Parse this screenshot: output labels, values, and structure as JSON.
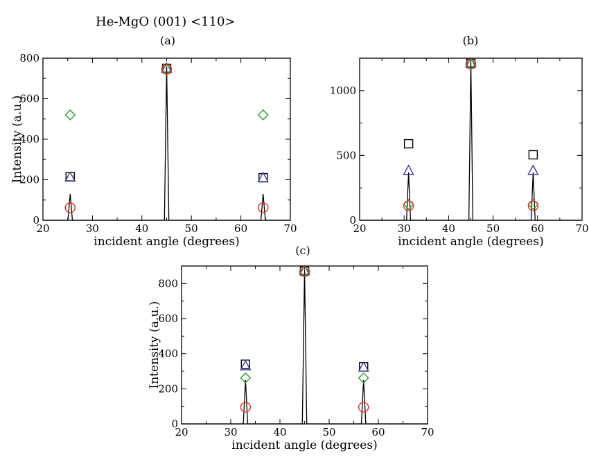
{
  "figure_title": "He-MgO (001) <110>",
  "colors": {
    "square": "#000000",
    "triangle": "#3a3a9a",
    "diamond": "#2e9a2e",
    "circle": "#e0301e",
    "curve": "#000000"
  },
  "chart_data": [
    {
      "type": "line",
      "panel_label": "(a)",
      "xlabel": "incident angle (degrees)",
      "ylabel": "Intensity (a.u.)",
      "xlim": [
        20,
        70
      ],
      "ylim": [
        0,
        800
      ],
      "xticks": [
        "20",
        "30",
        "40",
        "50",
        "60",
        "70"
      ],
      "yticks": [
        "0",
        "200",
        "400",
        "600",
        "800"
      ],
      "peaks": [
        {
          "x": 25.5,
          "y": 130
        },
        {
          "x": 45,
          "y": 760
        },
        {
          "x": 64.5,
          "y": 130
        }
      ],
      "markers": [
        {
          "shape": "square",
          "x": 25.5,
          "y": 215
        },
        {
          "shape": "triangle",
          "x": 25.5,
          "y": 210
        },
        {
          "shape": "diamond",
          "x": 25.5,
          "y": 520
        },
        {
          "shape": "circle",
          "x": 25.5,
          "y": 62
        },
        {
          "shape": "square",
          "x": 45,
          "y": 750
        },
        {
          "shape": "triangle",
          "x": 45,
          "y": 748
        },
        {
          "shape": "diamond",
          "x": 45,
          "y": 745
        },
        {
          "shape": "circle",
          "x": 45,
          "y": 745
        },
        {
          "shape": "square",
          "x": 64.5,
          "y": 210
        },
        {
          "shape": "triangle",
          "x": 64.5,
          "y": 208
        },
        {
          "shape": "diamond",
          "x": 64.5,
          "y": 520
        },
        {
          "shape": "circle",
          "x": 64.5,
          "y": 62
        }
      ]
    },
    {
      "type": "line",
      "panel_label": "(b)",
      "xlabel": "incident angle (degrees)",
      "ylabel": "",
      "xlim": [
        20,
        70
      ],
      "ylim": [
        0,
        1250
      ],
      "xticks": [
        "20",
        "30",
        "40",
        "50",
        "60",
        "70"
      ],
      "yticks": [
        "0",
        "500",
        "1000"
      ],
      "peaks": [
        {
          "x": 31,
          "y": 370
        },
        {
          "x": 45,
          "y": 1230
        },
        {
          "x": 59,
          "y": 370
        }
      ],
      "markers": [
        {
          "shape": "square",
          "x": 31,
          "y": 590
        },
        {
          "shape": "triangle",
          "x": 31,
          "y": 380
        },
        {
          "shape": "diamond",
          "x": 31,
          "y": 122
        },
        {
          "shape": "circle",
          "x": 31,
          "y": 112
        },
        {
          "shape": "square",
          "x": 45,
          "y": 1210
        },
        {
          "shape": "triangle",
          "x": 45,
          "y": 1210
        },
        {
          "shape": "diamond",
          "x": 45,
          "y": 1205
        },
        {
          "shape": "circle",
          "x": 45,
          "y": 1205
        },
        {
          "shape": "square",
          "x": 59,
          "y": 505
        },
        {
          "shape": "triangle",
          "x": 59,
          "y": 380
        },
        {
          "shape": "diamond",
          "x": 59,
          "y": 122
        },
        {
          "shape": "circle",
          "x": 59,
          "y": 112
        }
      ]
    },
    {
      "type": "line",
      "panel_label": "(c)",
      "xlabel": "incident angle (degrees)",
      "ylabel": "Intensity (a.u.)",
      "xlim": [
        20,
        70
      ],
      "ylim": [
        0,
        900
      ],
      "xticks": [
        "20",
        "30",
        "40",
        "50",
        "60",
        "70"
      ],
      "yticks": [
        "0",
        "200",
        "400",
        "600",
        "800"
      ],
      "peaks": [
        {
          "x": 33,
          "y": 250
        },
        {
          "x": 45,
          "y": 880
        },
        {
          "x": 57,
          "y": 250
        }
      ],
      "markers": [
        {
          "shape": "square",
          "x": 33,
          "y": 340
        },
        {
          "shape": "triangle",
          "x": 33,
          "y": 328
        },
        {
          "shape": "diamond",
          "x": 33,
          "y": 262
        },
        {
          "shape": "circle",
          "x": 33,
          "y": 95
        },
        {
          "shape": "square",
          "x": 45,
          "y": 872
        },
        {
          "shape": "triangle",
          "x": 45,
          "y": 870
        },
        {
          "shape": "diamond",
          "x": 45,
          "y": 868
        },
        {
          "shape": "circle",
          "x": 45,
          "y": 868
        },
        {
          "shape": "square",
          "x": 57,
          "y": 325
        },
        {
          "shape": "triangle",
          "x": 57,
          "y": 320
        },
        {
          "shape": "diamond",
          "x": 57,
          "y": 262
        },
        {
          "shape": "circle",
          "x": 57,
          "y": 95
        }
      ]
    }
  ]
}
